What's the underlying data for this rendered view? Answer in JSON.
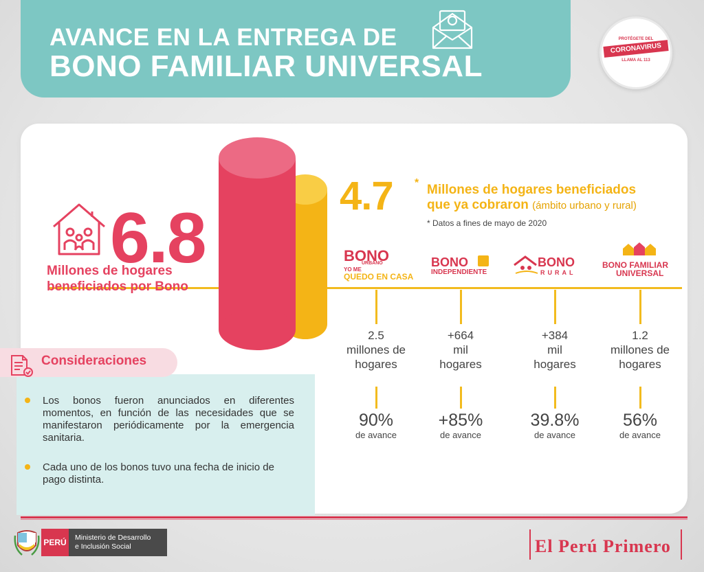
{
  "header": {
    "title_line1": "AVANCE EN LA ENTREGA DE",
    "title_line2": "BONO FAMILIAR UNIVERSAL"
  },
  "stamp": {
    "top": "PROTÉGETE DEL",
    "main": "CORONAVIRUS",
    "bottom": "LLAMA AL 113"
  },
  "totals": {
    "main_number": "6.8",
    "main_caption_1": "Millones de hogares",
    "main_caption_2": "beneficiados por Bono",
    "second_number": "4.7",
    "second_star": "*",
    "second_caption_1": "Millones de hogares beneficiados",
    "second_caption_2": "que ya cobraron",
    "second_caption_note": "(ámbito urbano y rural)",
    "data_note": "* Datos a fines de mayo de 2020"
  },
  "programs": [
    {
      "logo_line1": "BONO",
      "logo_sub": "URBANO",
      "logo_line2": "YO ME",
      "logo_line3": "QUEDO EN CASA",
      "value_1": "2.5",
      "value_2": "millones de",
      "value_3": "hogares",
      "pct": "90%",
      "pct_label": "de avance",
      "progress": 0.9
    },
    {
      "logo_line1": "BONO",
      "logo_line2": "INDEPENDIENTE",
      "value_1": "+664",
      "value_2": "mil",
      "value_3": "hogares",
      "pct": "+85%",
      "pct_label": "de avance",
      "progress": 0.85
    },
    {
      "logo_line1": "BONO",
      "logo_line2": "RURAL",
      "value_1": "+384",
      "value_2": "mil",
      "value_3": "hogares",
      "pct": "39.8%",
      "pct_label": "de avance",
      "progress": 0.398
    },
    {
      "logo_line1": "BONO FAMILIAR",
      "logo_line2": "UNIVERSAL",
      "value_1": "1.2",
      "value_2": "millones de",
      "value_3": "hogares",
      "pct": "56%",
      "pct_label": "de avance",
      "progress": 0.56
    }
  ],
  "considerations": {
    "title": "Consideraciones",
    "items": [
      "Los bonos fueron anunciados en diferentes momentos, en función de las necesidades que se manifestaron periódicamente por la emergencia sanitaria.",
      "Cada uno de los bonos tuvo una fecha de inicio de pago distinta."
    ]
  },
  "footer": {
    "peru": "PERÚ",
    "ministry_1": "Ministerio de Desarrollo",
    "ministry_2": "e Inclusión Social",
    "brand": "El Perú Primero"
  },
  "colors": {
    "teal": "#7dc7c3",
    "red": "#e54260",
    "yellow": "#f4b416",
    "light_teal": "#d8efee"
  },
  "icons": [
    "envelope-money-icon",
    "house-family-icon",
    "document-check-icon",
    "coat-of-arms-icon"
  ]
}
